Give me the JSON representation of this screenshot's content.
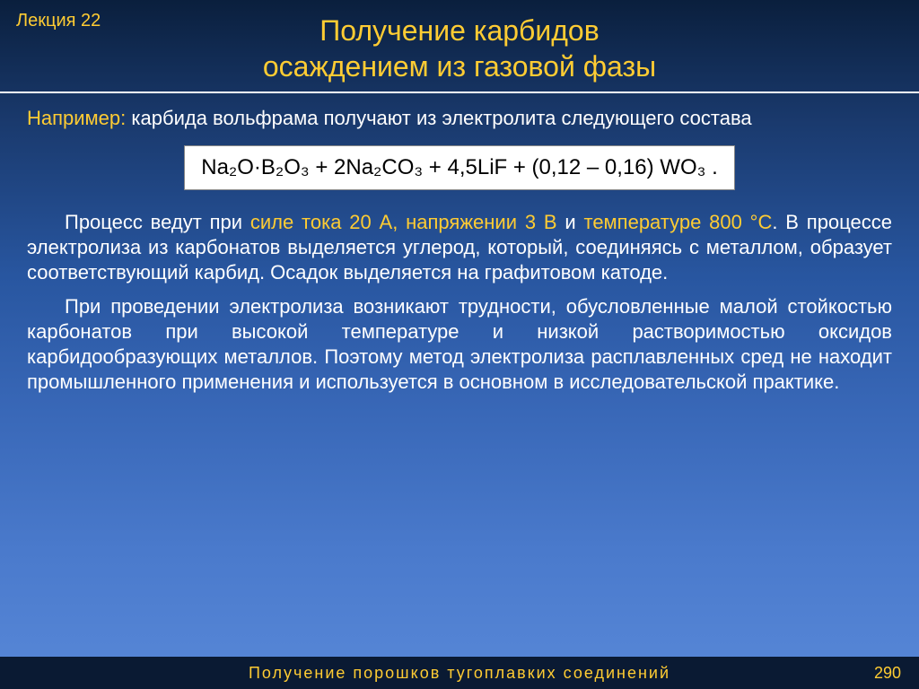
{
  "lecture_label": "Лекция 22",
  "lecture_color": "#ffcc33",
  "title": {
    "line1": "Получение карбидов",
    "line2": "осаждением из газовой фазы",
    "color": "#ffcc33",
    "fontsize": 32
  },
  "intro": {
    "lead": "Например:",
    "rest": " карбида вольфрама получают из  электролита следующего состава",
    "lead_color": "#ffcc33"
  },
  "formula": {
    "text": "Na₂O·B₂O₃ + 2Na₂CO₃ + 4,5LiF + (0,12 – 0,16) WO₃ .",
    "bg": "#ffffff",
    "fg": "#000000",
    "fontsize": 24
  },
  "para1": {
    "p1": "Процесс ведут при ",
    "h1": "силе тока 20 А, напряжении 3 В",
    "p2": " и ",
    "h2": "температуре 800 °С",
    "p3": ". В процессе электролиза из карбонатов выделяется углерод, который, соединяясь с металлом, образует соответствующий карбид. Осадок выделяется на графитовом катоде."
  },
  "para2": "При проведении электролиза возникают трудности, обусловленные малой стойкостью карбонатов при высокой температуре и низкой растворимостью оксидов карбидообразующих металлов. Поэтому метод электролиза расплавленных сред не находит промышленного применения и используется в основном в исследовательской практике.",
  "footer": {
    "text": "Получение порошков тугоплавких соединений",
    "page": "290",
    "bg": "#0a1a33",
    "color": "#ffcc33"
  },
  "body_text_color": "#ffffff",
  "highlight_color": "#ffcc33",
  "background_gradient": [
    "#0a1f3d",
    "#1a3a6e",
    "#2856a0",
    "#3968b8",
    "#4a7acc",
    "#5888d8"
  ]
}
